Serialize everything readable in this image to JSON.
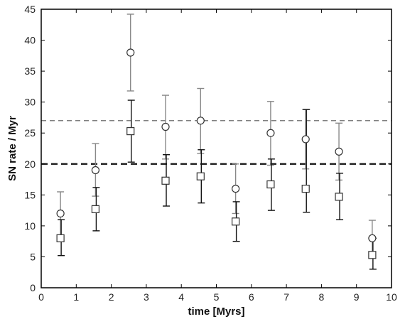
{
  "chart_data": {
    "type": "scatter",
    "title": "",
    "xlabel": "time [Myrs]",
    "ylabel": "SN rate / Myr",
    "xlim": [
      0,
      10
    ],
    "ylim": [
      0,
      45
    ],
    "xticks": [
      0,
      1,
      2,
      3,
      4,
      5,
      6,
      7,
      8,
      9,
      10
    ],
    "yticks": [
      0,
      5,
      10,
      15,
      20,
      25,
      30,
      35,
      40,
      45
    ],
    "grid": false,
    "hlines": [
      {
        "y": 27,
        "style": "thin-dashed",
        "color": "#555555"
      },
      {
        "y": 20,
        "style": "thick-dashed",
        "color": "#111111"
      }
    ],
    "series": [
      {
        "marker": "circle",
        "color": "#888888",
        "points": [
          {
            "x": 0.55,
            "y": 12.0,
            "ylow": 8.0,
            "yhigh": 15.5
          },
          {
            "x": 1.55,
            "y": 19.0,
            "ylow": 14.8,
            "yhigh": 23.3
          },
          {
            "x": 2.55,
            "y": 38.0,
            "ylow": 31.8,
            "yhigh": 44.2
          },
          {
            "x": 3.55,
            "y": 26.0,
            "ylow": 20.8,
            "yhigh": 31.1
          },
          {
            "x": 4.55,
            "y": 27.0,
            "ylow": 21.7,
            "yhigh": 32.2
          },
          {
            "x": 5.55,
            "y": 16.0,
            "ylow": 12.0,
            "yhigh": 20.0
          },
          {
            "x": 6.55,
            "y": 25.0,
            "ylow": 19.8,
            "yhigh": 30.1
          },
          {
            "x": 7.55,
            "y": 24.0,
            "ylow": 19.2,
            "yhigh": 28.8
          },
          {
            "x": 8.5,
            "y": 22.0,
            "ylow": 17.4,
            "yhigh": 26.6
          },
          {
            "x": 9.45,
            "y": 8.0,
            "ylow": 5.0,
            "yhigh": 10.9
          }
        ]
      },
      {
        "marker": "square",
        "color": "#111111",
        "points": [
          {
            "x": 0.55,
            "y": 8.0,
            "ylow": 5.2,
            "yhigh": 11.0
          },
          {
            "x": 1.55,
            "y": 12.7,
            "ylow": 9.2,
            "yhigh": 16.2
          },
          {
            "x": 2.55,
            "y": 25.3,
            "ylow": 20.3,
            "yhigh": 30.3
          },
          {
            "x": 3.55,
            "y": 17.3,
            "ylow": 13.2,
            "yhigh": 21.5
          },
          {
            "x": 4.55,
            "y": 18.0,
            "ylow": 13.7,
            "yhigh": 22.3
          },
          {
            "x": 5.55,
            "y": 10.7,
            "ylow": 7.5,
            "yhigh": 13.9
          },
          {
            "x": 6.55,
            "y": 16.7,
            "ylow": 12.5,
            "yhigh": 20.8
          },
          {
            "x": 7.55,
            "y": 16.0,
            "ylow": 12.2,
            "yhigh": 28.8
          },
          {
            "x": 8.5,
            "y": 14.7,
            "ylow": 11.0,
            "yhigh": 18.5
          },
          {
            "x": 9.45,
            "y": 5.3,
            "ylow": 3.0,
            "yhigh": 8.0
          }
        ]
      }
    ]
  }
}
